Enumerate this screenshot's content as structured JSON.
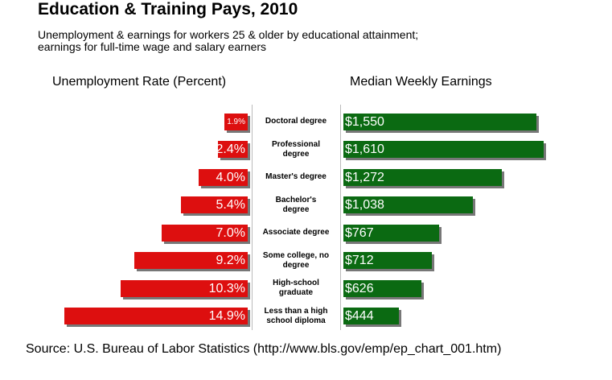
{
  "chart_data": {
    "type": "butterfly-bar",
    "title": "Education & Training Pays, 2010",
    "subtitle": "Unemployment & earnings for workers 25 & older by educational attainment;\nearnings for full-time wage and salary earners",
    "categories": [
      "Doctoral degree",
      "Professional\ndegree",
      "Master's degree",
      "Bachelor's\ndegree",
      "Associate degree",
      "Some college, no\ndegree",
      "High-school\ngraduate",
      "Less than a high\nschool diploma"
    ],
    "series": [
      {
        "name": "Unemployment Rate (Percent)",
        "color": "#dd0f0f",
        "values": [
          1.9,
          2.4,
          4.0,
          5.4,
          7.0,
          9.2,
          10.3,
          14.9
        ],
        "value_labels": [
          "1.9%",
          "2.4%",
          "4.0%",
          "5.4%",
          "7.0%",
          "9.2%",
          "10.3%",
          "14.9%"
        ]
      },
      {
        "name": "Median Weekly Earnings",
        "color": "#0b6a12",
        "values": [
          1550,
          1610,
          1272,
          1038,
          767,
          712,
          626,
          444
        ],
        "value_labels": [
          "$1,550",
          "$1,610",
          "$1,272",
          "$1,038",
          "$767",
          "$712",
          "$626",
          "$444"
        ]
      }
    ],
    "source": "Source: U.S. Bureau of Labor Statistics  (http://www.bls.gov/emp/ep_chart_001.htm)"
  }
}
